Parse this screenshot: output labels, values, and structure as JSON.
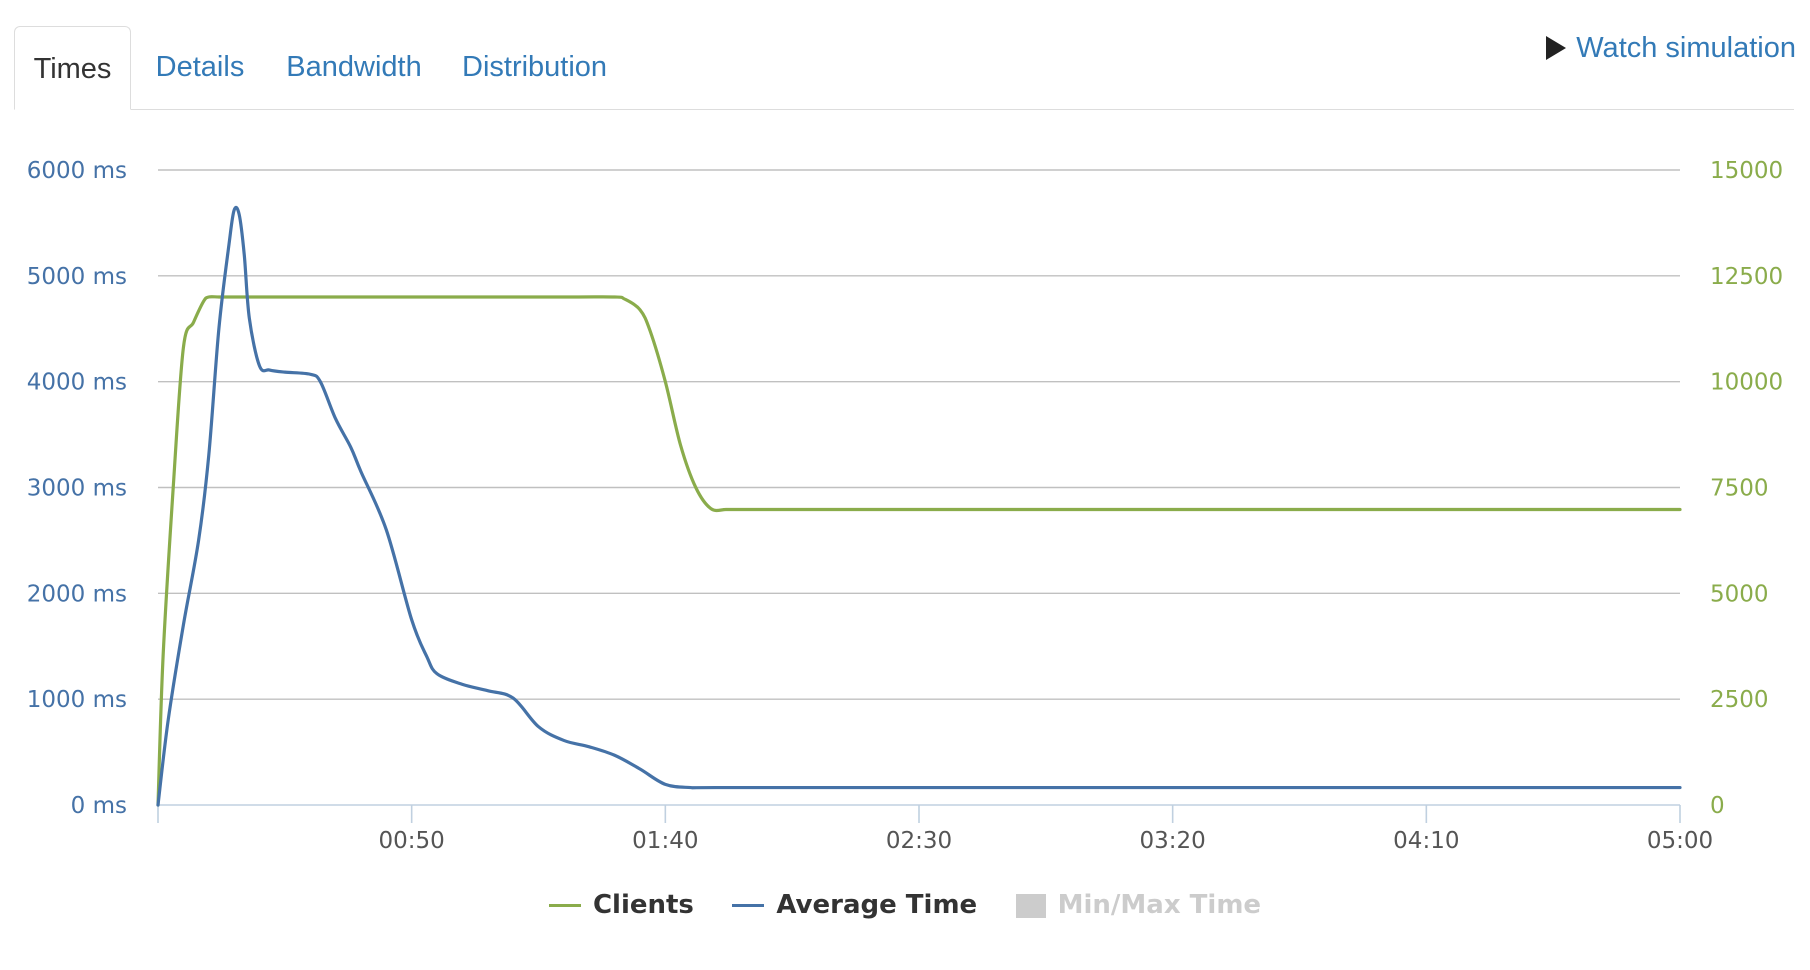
{
  "tabs": [
    {
      "label": "Times",
      "active": true
    },
    {
      "label": "Details",
      "active": false
    },
    {
      "label": "Bandwidth",
      "active": false
    },
    {
      "label": "Distribution",
      "active": false
    }
  ],
  "watch_simulation": {
    "label": "Watch simulation",
    "icon": "play-icon"
  },
  "colors": {
    "clients": "#8aac4b",
    "average_time": "#4572a7",
    "min_max": "#cccccc",
    "grid": "#c0c0c0",
    "left_axis_text": "#4572a7",
    "right_axis_text": "#8aac4b",
    "x_axis_text": "#555555"
  },
  "legend": [
    {
      "label": "Clients",
      "color": "#8aac4b",
      "style": "line",
      "enabled": true
    },
    {
      "label": "Average Time",
      "color": "#4572a7",
      "style": "line",
      "enabled": true
    },
    {
      "label": "Min/Max Time",
      "color": "#cccccc",
      "style": "box",
      "enabled": false
    }
  ],
  "chart_data": {
    "type": "line",
    "title": "",
    "xlabel": "",
    "x_unit": "seconds",
    "xlim": [
      0,
      300
    ],
    "x_ticks": [
      50,
      100,
      150,
      200,
      250,
      300
    ],
    "x_tick_labels": [
      "00:50",
      "01:40",
      "02:30",
      "03:20",
      "04:10",
      "05:00"
    ],
    "y_left": {
      "label": "",
      "lim": [
        0,
        6000
      ],
      "ticks": [
        0,
        1000,
        2000,
        3000,
        4000,
        5000,
        6000
      ],
      "tick_labels": [
        "0 ms",
        "1000 ms",
        "2000 ms",
        "3000 ms",
        "4000 ms",
        "5000 ms",
        "6000 ms"
      ]
    },
    "y_right": {
      "label": "",
      "lim": [
        0,
        15000
      ],
      "ticks": [
        0,
        2500,
        5000,
        7500,
        10000,
        12500,
        15000
      ],
      "tick_labels": [
        "0",
        "2500",
        "5000",
        "7500",
        "10000",
        "12500",
        "15000"
      ]
    },
    "grid": true,
    "legend_position": "bottom-center",
    "series": [
      {
        "name": "Clients",
        "axis": "right",
        "x": [
          0,
          1,
          3,
          5,
          7,
          9,
          10,
          12,
          15,
          20,
          30,
          50,
          80,
          90,
          92,
          95,
          97,
          100,
          103,
          106,
          109,
          112,
          115,
          150,
          200,
          250,
          300
        ],
        "values": [
          0,
          3500,
          7500,
          10800,
          11400,
          11900,
          12000,
          12000,
          12000,
          12000,
          12000,
          12000,
          12000,
          12000,
          11950,
          11700,
          11200,
          10000,
          8500,
          7500,
          7000,
          6980,
          6980,
          6980,
          6980,
          6980,
          6980
        ]
      },
      {
        "name": "Average Time",
        "axis": "left",
        "x": [
          0,
          2,
          5,
          8,
          10,
          12,
          14,
          15,
          16,
          17,
          18,
          20,
          22,
          25,
          30,
          32,
          35,
          38,
          40,
          45,
          50,
          53,
          55,
          60,
          65,
          70,
          75,
          80,
          85,
          90,
          95,
          100,
          105,
          110,
          150,
          200,
          250,
          300
        ],
        "values": [
          0,
          800,
          1700,
          2500,
          3300,
          4500,
          5300,
          5620,
          5580,
          5200,
          4600,
          4150,
          4110,
          4090,
          4070,
          4000,
          3650,
          3380,
          3150,
          2600,
          1750,
          1400,
          1240,
          1140,
          1080,
          1010,
          740,
          610,
          550,
          470,
          340,
          195,
          165,
          165,
          165,
          165,
          165,
          165
        ]
      }
    ]
  }
}
